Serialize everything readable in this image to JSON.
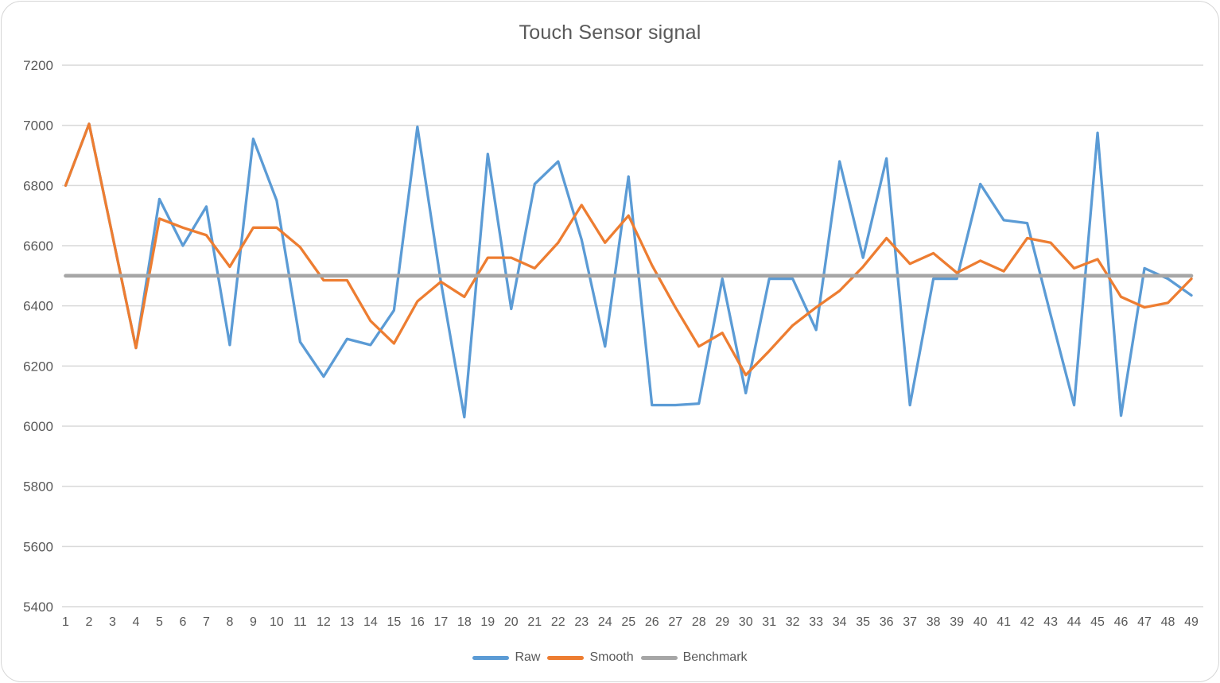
{
  "chart_data": {
    "type": "line",
    "title": "Touch Sensor signal",
    "categories": [
      1,
      2,
      3,
      4,
      5,
      6,
      7,
      8,
      9,
      10,
      11,
      12,
      13,
      14,
      15,
      16,
      17,
      18,
      19,
      20,
      21,
      22,
      23,
      24,
      25,
      26,
      27,
      28,
      29,
      30,
      31,
      32,
      33,
      34,
      35,
      36,
      37,
      38,
      39,
      40,
      41,
      42,
      43,
      44,
      45,
      46,
      47,
      48,
      49
    ],
    "series": [
      {
        "name": "Raw",
        "color": "#5B9BD5",
        "values": [
          6800,
          7005,
          6633,
          6260,
          6755,
          6600,
          6730,
          6270,
          6955,
          6750,
          6280,
          6165,
          6290,
          6270,
          6385,
          6995,
          6480,
          6030,
          6905,
          6390,
          6805,
          6880,
          6620,
          6265,
          6830,
          6070,
          6070,
          6075,
          6490,
          6110,
          6490,
          6490,
          6320,
          6880,
          6560,
          6890,
          6070,
          6490,
          6490,
          6805,
          6685,
          6675,
          6370,
          6070,
          6975,
          6035,
          6525,
          6490,
          6435
        ]
      },
      {
        "name": "Smooth",
        "color": "#ED7D31",
        "values": [
          6800,
          7005,
          6633,
          6260,
          6690,
          6660,
          6635,
          6530,
          6660,
          6660,
          6595,
          6485,
          6485,
          6350,
          6275,
          6415,
          6480,
          6430,
          6560,
          6560,
          6525,
          6610,
          6735,
          6610,
          6700,
          6535,
          6395,
          6265,
          6310,
          6170,
          6250,
          6335,
          6395,
          6450,
          6530,
          6625,
          6540,
          6575,
          6510,
          6550,
          6515,
          6625,
          6610,
          6525,
          6555,
          6430,
          6395,
          6410,
          6490
        ]
      },
      {
        "name": "Benchmark",
        "color": "#A6A6A6",
        "constant_value": 6500
      }
    ],
    "y_axis": {
      "min": 5400,
      "max": 7200,
      "tick_step": 200,
      "ticks": [
        7200,
        7000,
        6800,
        6600,
        6400,
        6200,
        6000,
        5800,
        5600,
        5400
      ]
    },
    "legend": {
      "position": "bottom",
      "entries": [
        "Raw",
        "Smooth",
        "Benchmark"
      ]
    },
    "grid": true,
    "text_color": "#595959",
    "gridline_color": "#D9D9D9"
  }
}
